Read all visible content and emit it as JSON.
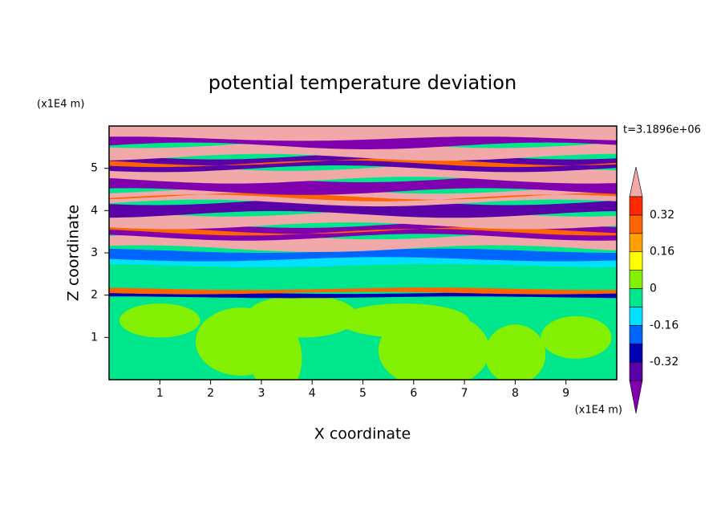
{
  "chart_data": {
    "type": "contour",
    "title": "potential temperature deviation",
    "x_label": "X coordinate",
    "y_label": "Z coordinate",
    "x_unit": "(x1E4 m)",
    "y_unit": "(x1E4 m)",
    "time_label": "t=3.1896e+06",
    "xlim": [
      0,
      10
    ],
    "ylim": [
      0,
      6
    ],
    "xticks": [
      1,
      2,
      3,
      4,
      5,
      6,
      7,
      8,
      9
    ],
    "yticks": [
      1,
      2,
      3,
      4,
      5
    ],
    "colorbar": {
      "levels": [
        -0.4,
        -0.32,
        -0.24,
        -0.16,
        -0.08,
        0,
        0.08,
        0.16,
        0.24,
        0.32,
        0.4
      ],
      "labels": [
        -0.32,
        -0.16,
        0,
        0.16,
        0.32
      ],
      "colors": [
        "#8000b0",
        "#5a00a8",
        "#0000b4",
        "#0064ff",
        "#00e0ff",
        "#00e68c",
        "#82f000",
        "#ffff00",
        "#ffa000",
        "#ff6400",
        "#ff2800",
        "#f0a8a8"
      ]
    }
  }
}
